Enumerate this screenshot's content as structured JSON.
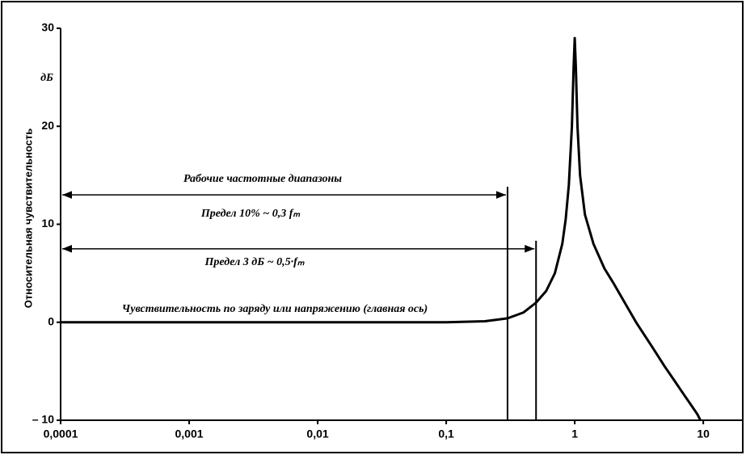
{
  "chart_data": {
    "type": "line",
    "log_x": true,
    "y_axis_label": "Относительная чувствительность",
    "y_unit": "дБ",
    "x": [
      0.0001,
      0.001,
      0.01,
      0.1,
      0.2,
      0.3,
      0.4,
      0.5,
      0.6,
      0.7,
      0.8,
      0.85,
      0.9,
      0.95,
      0.98,
      1,
      1.02,
      1.05,
      1.1,
      1.2,
      1.4,
      1.7,
      2,
      3,
      4,
      5,
      6,
      7,
      8,
      9,
      9.5
    ],
    "values": [
      0,
      0,
      0,
      0,
      0.1,
      0.4,
      1,
      2,
      3.2,
      5,
      8,
      10.5,
      14,
      20,
      26,
      29,
      26,
      20,
      15,
      11,
      8,
      5.5,
      4,
      0,
      -2.5,
      -4.5,
      -6,
      -7.3,
      -8.4,
      -9.4,
      -10
    ],
    "color": "#000000",
    "xlim": [
      0.0001,
      20
    ],
    "ylim": [
      -10,
      30
    ],
    "xticks": [
      {
        "value": 0.0001,
        "label": "0,0001"
      },
      {
        "value": 0.001,
        "label": "0,001"
      },
      {
        "value": 0.01,
        "label": "0,01"
      },
      {
        "value": 0.1,
        "label": "0,1"
      },
      1,
      10
    ],
    "yticks": [
      30,
      20,
      10,
      0,
      {
        "value": -10,
        "label": "– 10"
      }
    ],
    "grid": false,
    "annotations": [
      {
        "text": "Рабочие частотные диапазоны"
      },
      {
        "text": "Предел 10% ~ 0,3 fₘ",
        "x": 0.3,
        "y": 13
      },
      {
        "text": "Предел 3 дБ ~ 0,5·fₘ",
        "x": 0.5,
        "y": 7.5
      },
      {
        "text": "Чувствительность по заряду или напряжению (главная ось)"
      }
    ]
  }
}
